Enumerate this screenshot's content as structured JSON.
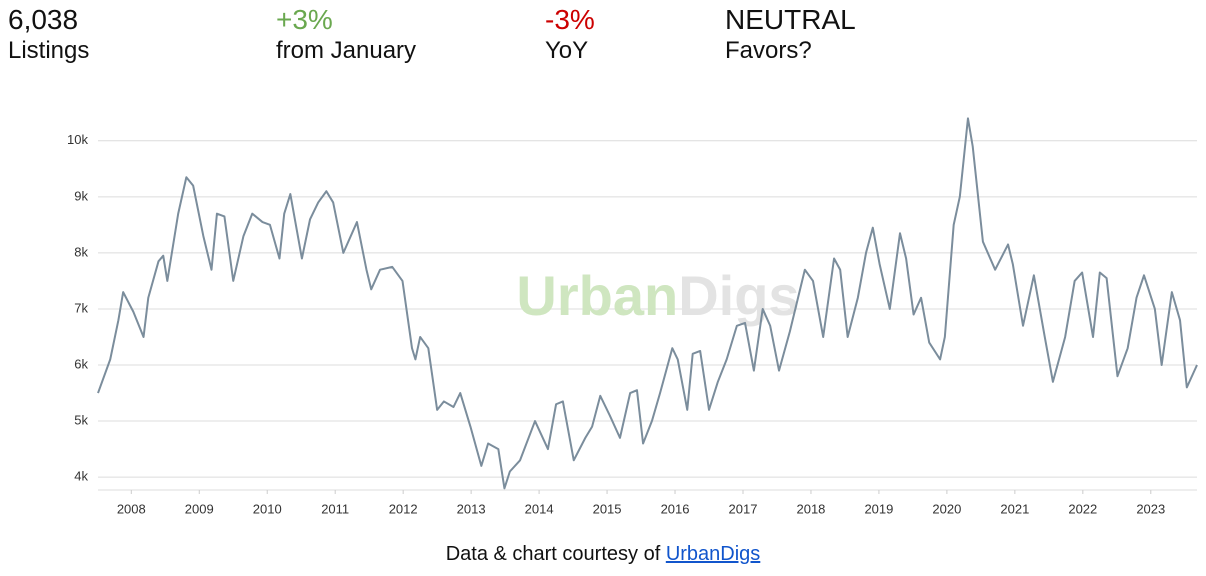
{
  "stats": [
    {
      "value": "6,038",
      "label": "Listings",
      "color": "#111111"
    },
    {
      "value": "+3%",
      "label": "from January",
      "color": "#6aa84f"
    },
    {
      "value": "-3%",
      "label": "YoY",
      "color": "#cc0000"
    },
    {
      "value": "NEUTRAL",
      "label": "Favors?",
      "color": "#111111"
    }
  ],
  "chart_data": {
    "type": "line",
    "watermark": [
      "Urban",
      "Digs"
    ],
    "x": [
      2007.51,
      2007.69,
      2007.81,
      2007.88,
      2008.03,
      2008.18,
      2008.25,
      2008.4,
      2008.47,
      2008.53,
      2008.69,
      2008.81,
      2008.91,
      2009.06,
      2009.18,
      2009.26,
      2009.37,
      2009.5,
      2009.65,
      2009.78,
      2009.93,
      2010.04,
      2010.18,
      2010.25,
      2010.34,
      2010.51,
      2010.63,
      2010.75,
      2010.87,
      2010.97,
      2011.12,
      2011.32,
      2011.46,
      2011.53,
      2011.66,
      2011.84,
      2011.99,
      2012.13,
      2012.18,
      2012.25,
      2012.37,
      2012.5,
      2012.6,
      2012.74,
      2012.84,
      2012.99,
      2013.15,
      2013.25,
      2013.4,
      2013.49,
      2013.57,
      2013.72,
      2013.94,
      2014.13,
      2014.25,
      2014.35,
      2014.51,
      2014.68,
      2014.78,
      2014.9,
      2015.04,
      2015.19,
      2015.34,
      2015.44,
      2015.53,
      2015.66,
      2015.78,
      2015.96,
      2016.04,
      2016.18,
      2016.26,
      2016.37,
      2016.5,
      2016.63,
      2016.76,
      2016.91,
      2017.03,
      2017.16,
      2017.29,
      2017.4,
      2017.53,
      2017.69,
      2017.79,
      2017.91,
      2018.03,
      2018.18,
      2018.34,
      2018.43,
      2018.54,
      2018.69,
      2018.81,
      2018.91,
      2019.01,
      2019.16,
      2019.31,
      2019.4,
      2019.51,
      2019.62,
      2019.74,
      2019.9,
      2019.97,
      2020.1,
      2020.19,
      2020.31,
      2020.38,
      2020.53,
      2020.71,
      2020.9,
      2020.97,
      2021.12,
      2021.28,
      2021.44,
      2021.56,
      2021.74,
      2021.88,
      2021.99,
      2022.15,
      2022.25,
      2022.35,
      2022.51,
      2022.66,
      2022.79,
      2022.9,
      2023.06,
      2023.16,
      2023.31,
      2023.43,
      2023.53,
      2023.68
    ],
    "values": [
      5500,
      6100,
      6800,
      7300,
      6950,
      6500,
      7200,
      7850,
      7950,
      7500,
      8700,
      9350,
      9200,
      8300,
      7700,
      8700,
      8650,
      7500,
      8300,
      8700,
      8550,
      8500,
      7900,
      8700,
      9050,
      7900,
      8600,
      8900,
      9100,
      8900,
      8000,
      8550,
      7700,
      7350,
      7700,
      7750,
      7500,
      6300,
      6100,
      6500,
      6300,
      5200,
      5350,
      5250,
      5500,
      4900,
      4200,
      4600,
      4500,
      3800,
      4100,
      4300,
      5000,
      4500,
      5300,
      5350,
      4300,
      4700,
      4900,
      5450,
      5100,
      4700,
      5500,
      5550,
      4600,
      5000,
      5500,
      6300,
      6100,
      5200,
      6200,
      6250,
      5200,
      5700,
      6100,
      6700,
      6750,
      5900,
      7000,
      6700,
      5900,
      6600,
      7100,
      7700,
      7500,
      6500,
      7900,
      7700,
      6500,
      7200,
      8000,
      8450,
      7800,
      7000,
      8350,
      7900,
      6900,
      7200,
      6400,
      6100,
      6500,
      8500,
      9000,
      10400,
      9900,
      8200,
      7700,
      8150,
      7800,
      6700,
      7600,
      6500,
      5700,
      6500,
      7500,
      7650,
      6500,
      7650,
      7550,
      5800,
      6300,
      7200,
      7600,
      7000,
      6000,
      7300,
      6800,
      5600,
      6000
    ],
    "color": "#7b8d9c",
    "xlim": [
      2007.51,
      2023.68
    ],
    "xticks": [
      2008,
      2009,
      2010,
      2011,
      2012,
      2013,
      2014,
      2015,
      2016,
      2017,
      2018,
      2019,
      2020,
      2021,
      2022,
      2023
    ],
    "ylim": [
      3770,
      10460
    ],
    "yticks": [
      {
        "value": 4000,
        "label": "4k"
      },
      {
        "value": 5000,
        "label": "5k"
      },
      {
        "value": 6000,
        "label": "6k"
      },
      {
        "value": 7000,
        "label": "7k"
      },
      {
        "value": 8000,
        "label": "8k"
      },
      {
        "value": 9000,
        "label": "9k"
      },
      {
        "value": 10000,
        "label": "10k"
      }
    ],
    "grid": true
  },
  "footer": {
    "text": "Data & chart courtesy of",
    "link": "UrbanDigs"
  }
}
